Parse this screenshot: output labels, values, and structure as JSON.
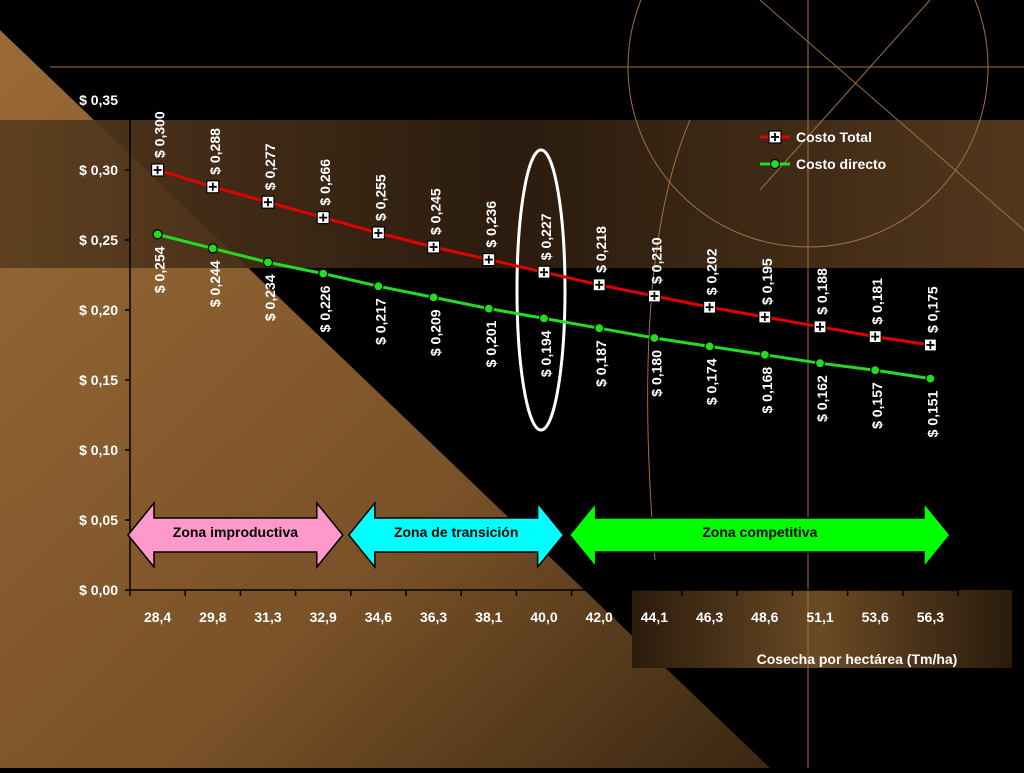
{
  "chart_data": {
    "type": "line",
    "xlabel": "Cosecha por hectárea (Tm/ha)",
    "ylabel": "",
    "ylim": [
      0,
      0.35
    ],
    "y_ticks": [
      0,
      0.05,
      0.1,
      0.15,
      0.2,
      0.25,
      0.3,
      0.35
    ],
    "y_tick_labels": [
      "$ 0,00",
      "$ 0,05",
      "$ 0,10",
      "$ 0,15",
      "$ 0,20",
      "$ 0,25",
      "$ 0,30",
      "$ 0,35"
    ],
    "categories": [
      "28,4",
      "29,8",
      "31,3",
      "32,9",
      "34,6",
      "36,3",
      "38,1",
      "40,0",
      "42,0",
      "44,1",
      "46,3",
      "48,6",
      "51,1",
      "53,6",
      "56,3"
    ],
    "series": [
      {
        "name": "Costo Total",
        "color": "#e00000",
        "marker": "square-plus",
        "values": [
          0.3,
          0.288,
          0.277,
          0.266,
          0.255,
          0.245,
          0.236,
          0.227,
          0.218,
          0.21,
          0.202,
          0.195,
          0.188,
          0.181,
          0.175
        ],
        "labels": [
          "$ 0,300",
          "$ 0,288",
          "$ 0,277",
          "$ 0,266",
          "$ 0,255",
          "$ 0,245",
          "$ 0,236",
          "$ 0,227",
          "$ 0,218",
          "$ 0,210",
          "$ 0,202",
          "$ 0,195",
          "$ 0,188",
          "$ 0,181",
          "$ 0,175"
        ]
      },
      {
        "name": "Costo directo",
        "color": "#22dd22",
        "marker": "circle",
        "values": [
          0.254,
          0.244,
          0.234,
          0.226,
          0.217,
          0.209,
          0.201,
          0.194,
          0.187,
          0.18,
          0.174,
          0.168,
          0.162,
          0.157,
          0.151
        ],
        "labels": [
          "$ 0,254",
          "$ 0,244",
          "$ 0,234",
          "$ 0,226",
          "$ 0,217",
          "$ 0,209",
          "$ 0,201",
          "$ 0,194",
          "$ 0,187",
          "$ 0,180",
          "$ 0,174",
          "$ 0,168",
          "$ 0,162",
          "$ 0,157",
          "$ 0,151"
        ]
      }
    ],
    "zones": [
      {
        "label": "Zona improductiva",
        "color": "#ff99cc",
        "from": 0,
        "to": 3
      },
      {
        "label": "Zona de transición",
        "color": "#00ffff",
        "from": 4,
        "to": 7
      },
      {
        "label": "Zona competitiva",
        "color": "#00ff00",
        "from": 8,
        "to": 14
      }
    ],
    "highlight_category": "40,0",
    "legend_position": "top-right",
    "grid": false
  }
}
